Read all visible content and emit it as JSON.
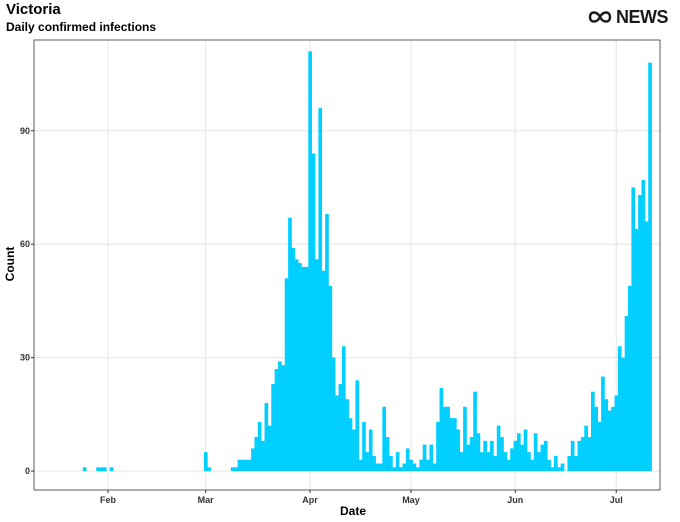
{
  "header": {
    "title": "Victoria",
    "subtitle": "Daily confirmed infections"
  },
  "logo": {
    "text": "NEWS",
    "icon": "abc-ribbon-icon"
  },
  "colors": {
    "bar": "#00CFFF",
    "grid": "#e6e6e6",
    "panel_border": "#333333"
  },
  "chart_data": {
    "type": "bar",
    "title": "Victoria",
    "subtitle": "Daily confirmed infections",
    "xlabel": "Date",
    "ylabel": "Count",
    "ylim": [
      -5,
      114
    ],
    "xlim": [
      "2020-01-10",
      "2020-07-14"
    ],
    "yticks": [
      0,
      30,
      60,
      90
    ],
    "xticks": [
      {
        "label": "Feb",
        "date": "2020-02-01"
      },
      {
        "label": "Mar",
        "date": "2020-03-01"
      },
      {
        "label": "Apr",
        "date": "2020-04-01"
      },
      {
        "label": "May",
        "date": "2020-05-01"
      },
      {
        "label": "Jun",
        "date": "2020-06-01"
      },
      {
        "label": "Jul",
        "date": "2020-07-01"
      }
    ],
    "grid": true,
    "start_date": "2020-01-25",
    "values": [
      1,
      0,
      0,
      0,
      1,
      1,
      1,
      0,
      1,
      0,
      0,
      0,
      0,
      0,
      0,
      0,
      0,
      0,
      0,
      0,
      0,
      0,
      0,
      0,
      0,
      0,
      0,
      0,
      0,
      0,
      0,
      0,
      0,
      0,
      0,
      0,
      5,
      1,
      0,
      0,
      0,
      0,
      0,
      0,
      1,
      1,
      3,
      3,
      3,
      3,
      6,
      9,
      13,
      8,
      18,
      12,
      23,
      27,
      29,
      28,
      51,
      67,
      59,
      56,
      55,
      54,
      54,
      111,
      84,
      56,
      96,
      53,
      68,
      49,
      30,
      20,
      23,
      33,
      19,
      14,
      11,
      24,
      3,
      13,
      5,
      11,
      4,
      2,
      2,
      17,
      9,
      4,
      1,
      5,
      1,
      2,
      6,
      3,
      2,
      1,
      3,
      7,
      3,
      7,
      2,
      13,
      22,
      17,
      17,
      14,
      14,
      11,
      5,
      17,
      7,
      9,
      21,
      10,
      5,
      8,
      5,
      8,
      4,
      12,
      9,
      5,
      3,
      6,
      8,
      10,
      7,
      11,
      5,
      3,
      10,
      5,
      7,
      8,
      3,
      1,
      4,
      1,
      2,
      0,
      4,
      8,
      4,
      8,
      9,
      12,
      9,
      21,
      17,
      13,
      25,
      19,
      16,
      17,
      20,
      33,
      30,
      41,
      49,
      75,
      64,
      73,
      77,
      66,
      108
    ]
  }
}
